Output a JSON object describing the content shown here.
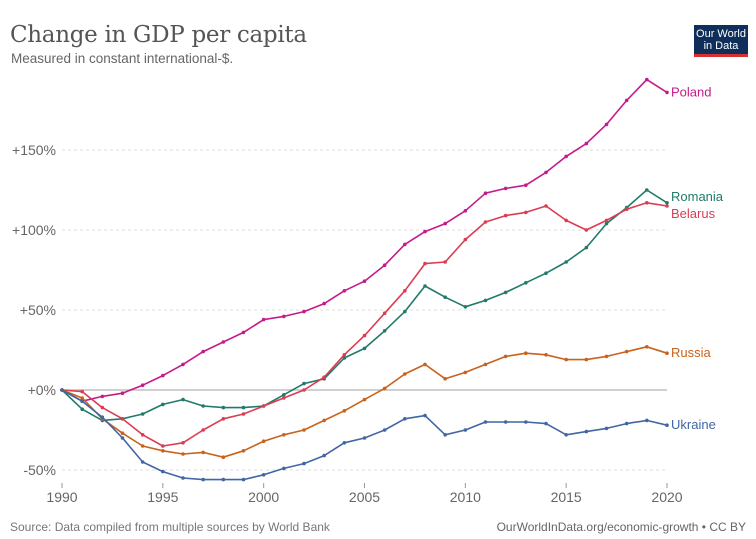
{
  "header": {
    "title": "Change in GDP per capita",
    "subtitle": "Measured in constant international-$.",
    "logo_line1": "Our World",
    "logo_line2": "in Data"
  },
  "footer": {
    "source": "Source: Data compiled from multiple sources by World Bank",
    "url": "OurWorldInData.org/economic-growth • CC BY"
  },
  "chart_data": {
    "type": "line",
    "title": "Change in GDP per capita",
    "subtitle": "Measured in constant international-$.",
    "xlabel": "",
    "ylabel": "",
    "x": [
      1990,
      1991,
      1992,
      1993,
      1994,
      1995,
      1996,
      1997,
      1998,
      1999,
      2000,
      2001,
      2002,
      2003,
      2004,
      2005,
      2006,
      2007,
      2008,
      2009,
      2010,
      2011,
      2012,
      2013,
      2014,
      2015,
      2016,
      2017,
      2018,
      2019,
      2020
    ],
    "xlim": [
      1990,
      2020
    ],
    "ylim": [
      -50,
      190
    ],
    "x_ticks": [
      1990,
      1995,
      2000,
      2005,
      2010,
      2015,
      2020
    ],
    "y_ticks": [
      -50,
      0,
      50,
      100,
      150
    ],
    "y_tick_labels": [
      "-50%",
      "+0%",
      "+50%",
      "+100%",
      "+150%"
    ],
    "grid": "horizontal dashed",
    "legend": "inline labels at right end of lines",
    "series": [
      {
        "name": "Poland",
        "color": "#c51b8a",
        "values": [
          0,
          -7,
          -4,
          -2,
          3,
          9,
          16,
          24,
          30,
          36,
          44,
          46,
          49,
          54,
          62,
          68,
          78,
          91,
          99,
          104,
          112,
          123,
          126,
          128,
          136,
          146,
          154,
          166,
          181,
          194,
          186
        ]
      },
      {
        "name": "Romania",
        "color": "#227a6a",
        "values": [
          0,
          -12,
          -19,
          -18,
          -15,
          -9,
          -6,
          -10,
          -11,
          -11,
          -10,
          -3,
          4,
          7,
          20,
          26,
          37,
          49,
          65,
          58,
          52,
          56,
          61,
          67,
          73,
          80,
          89,
          104,
          114,
          125,
          117
        ]
      },
      {
        "name": "Belarus",
        "color": "#dc3c52",
        "values": [
          0,
          -1,
          -11,
          -18,
          -28,
          -35,
          -33,
          -25,
          -18,
          -15,
          -10,
          -5,
          0,
          8,
          22,
          34,
          48,
          62,
          79,
          80,
          94,
          105,
          109,
          111,
          115,
          106,
          100,
          106,
          113,
          117,
          115
        ]
      },
      {
        "name": "Russia",
        "color": "#c9621a",
        "values": [
          0,
          -5,
          -18,
          -27,
          -35,
          -38,
          -40,
          -39,
          -42,
          -38,
          -32,
          -28,
          -25,
          -19,
          -13,
          -6,
          1,
          10,
          16,
          7,
          11,
          16,
          21,
          23,
          22,
          19,
          19,
          21,
          24,
          27,
          23
        ]
      },
      {
        "name": "Ukraine",
        "color": "#4166a3",
        "values": [
          0,
          -7,
          -17,
          -30,
          -45,
          -51,
          -55,
          -56,
          -56,
          -56,
          -53,
          -49,
          -46,
          -41,
          -33,
          -30,
          -25,
          -18,
          -16,
          -28,
          -25,
          -20,
          -20,
          -20,
          -21,
          -28,
          -26,
          -24,
          -21,
          -19,
          -22
        ]
      }
    ]
  }
}
